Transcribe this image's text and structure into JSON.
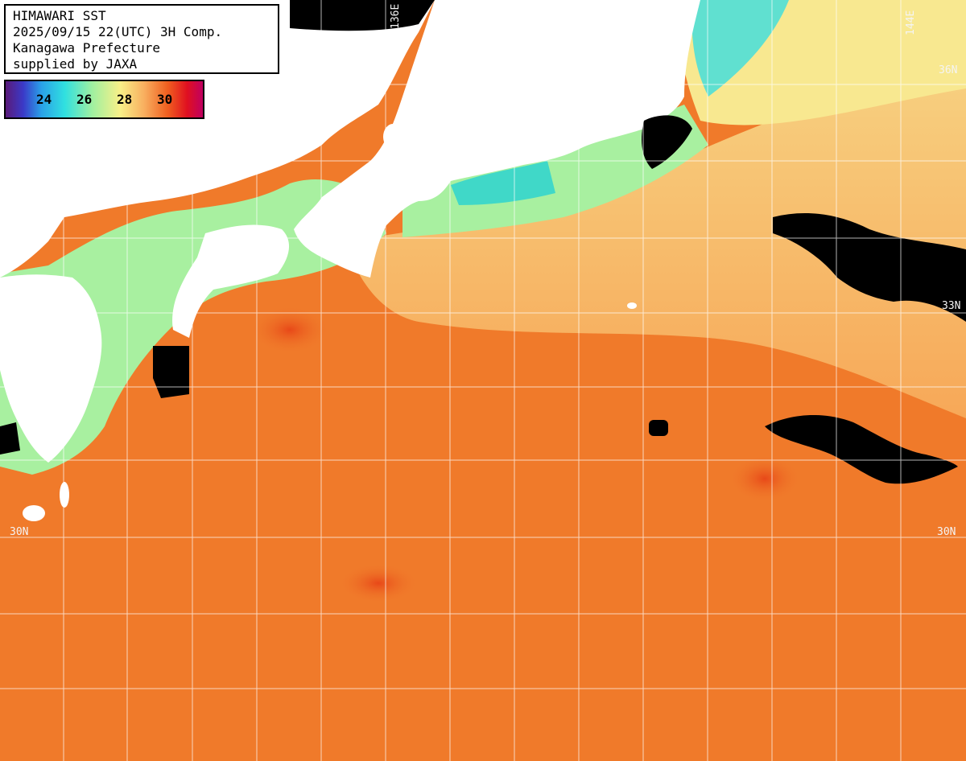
{
  "header": {
    "line1": "HIMAWARI SST",
    "line2": "2025/09/15 22(UTC) 3H Comp.",
    "line3": "Kanagawa Prefecture",
    "line4": "supplied by JAXA"
  },
  "legend": {
    "ticks": [
      "24",
      "26",
      "28",
      "30"
    ]
  },
  "grid_labels": {
    "lon_136": "136E",
    "lon_144": "144E",
    "lat_36": "36N",
    "lat_33": "33N",
    "lat_30_left": "30N",
    "lat_30_right": "30N"
  },
  "colors": {
    "ocean_warm": "#f07a2a",
    "ocean_cool": "#f8c870",
    "coastal": "#a8f0a0",
    "cold": "#40d8e8",
    "land": "#ffffff",
    "cloud": "#000000",
    "grid": "#ffffff"
  }
}
